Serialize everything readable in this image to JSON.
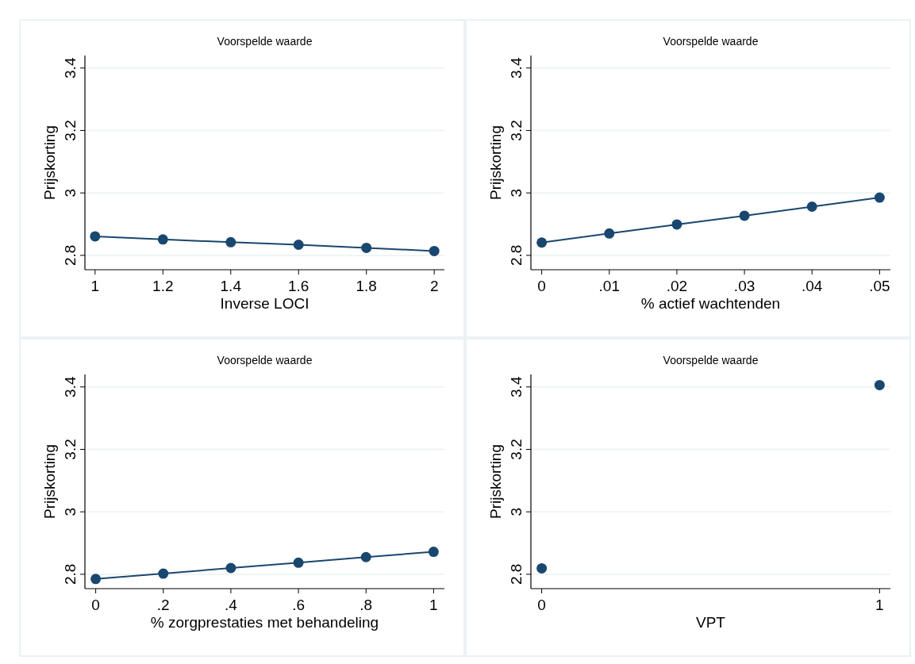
{
  "chart_data": [
    {
      "type": "line",
      "title": "Voorspelde waarde",
      "xlabel": "Inverse LOCI",
      "ylabel": "Prijskorting",
      "x": [
        1,
        1.2,
        1.4,
        1.6,
        1.8,
        2
      ],
      "series": [
        {
          "color": "#1a476f",
          "values": [
            2.861,
            2.851,
            2.842,
            2.834,
            2.824,
            2.814
          ]
        }
      ],
      "xlim": [
        0.97,
        2.03
      ],
      "xticks": [
        1,
        1.2,
        1.4,
        1.6,
        1.8,
        2
      ],
      "ylim": [
        2.754,
        3.44
      ],
      "yticks": [
        2.8,
        3,
        3.2,
        3.4
      ],
      "grid": "y",
      "marker": "circle"
    },
    {
      "type": "line",
      "title": "Voorspelde waarde",
      "xlabel": "% actief wachtenden",
      "ylabel": "Prijskorting",
      "x": [
        0,
        0.01,
        0.02,
        0.03,
        0.04,
        0.05
      ],
      "series": [
        {
          "color": "#1a476f",
          "values": [
            2.841,
            2.87,
            2.899,
            2.927,
            2.956,
            2.985
          ]
        }
      ],
      "xlim": [
        -0.0016,
        0.0516
      ],
      "xticks": [
        0,
        {
          "value": 0.01,
          "label": ".01"
        },
        {
          "value": 0.02,
          "label": ".02"
        },
        {
          "value": 0.03,
          "label": ".03"
        },
        {
          "value": 0.04,
          "label": ".04"
        },
        {
          "value": 0.05,
          "label": ".05"
        }
      ],
      "ylim": [
        2.754,
        3.44
      ],
      "yticks": [
        2.8,
        3,
        3.2,
        3.4
      ],
      "grid": "y",
      "marker": "circle"
    },
    {
      "type": "line",
      "title": "Voorspelde waarde",
      "xlabel": "% zorgprestaties met behandeling",
      "ylabel": "Prijskorting",
      "x": [
        0,
        0.2,
        0.4,
        0.6,
        0.8,
        1
      ],
      "series": [
        {
          "color": "#1a476f",
          "values": [
            2.785,
            2.802,
            2.82,
            2.837,
            2.855,
            2.872
          ]
        }
      ],
      "xlim": [
        -0.032,
        1.032
      ],
      "xticks": [
        0,
        {
          "value": 0.2,
          "label": ".2"
        },
        {
          "value": 0.4,
          "label": ".4"
        },
        {
          "value": 0.6,
          "label": ".6"
        },
        {
          "value": 0.8,
          "label": ".8"
        },
        1
      ],
      "ylim": [
        2.754,
        3.44
      ],
      "yticks": [
        2.8,
        3,
        3.2,
        3.4
      ],
      "grid": "y",
      "marker": "circle"
    },
    {
      "type": "scatter",
      "title": "Voorspelde waarde",
      "xlabel": "VPT",
      "ylabel": "Prijskorting",
      "x": [
        0,
        1
      ],
      "series": [
        {
          "color": "#1a476f",
          "values": [
            2.819,
            3.406
          ]
        }
      ],
      "xlim": [
        -0.032,
        1.032
      ],
      "xticks": [
        0,
        1
      ],
      "ylim": [
        2.754,
        3.44
      ],
      "yticks": [
        2.8,
        3,
        3.2,
        3.4
      ],
      "grid": "y",
      "marker": "circle"
    }
  ]
}
